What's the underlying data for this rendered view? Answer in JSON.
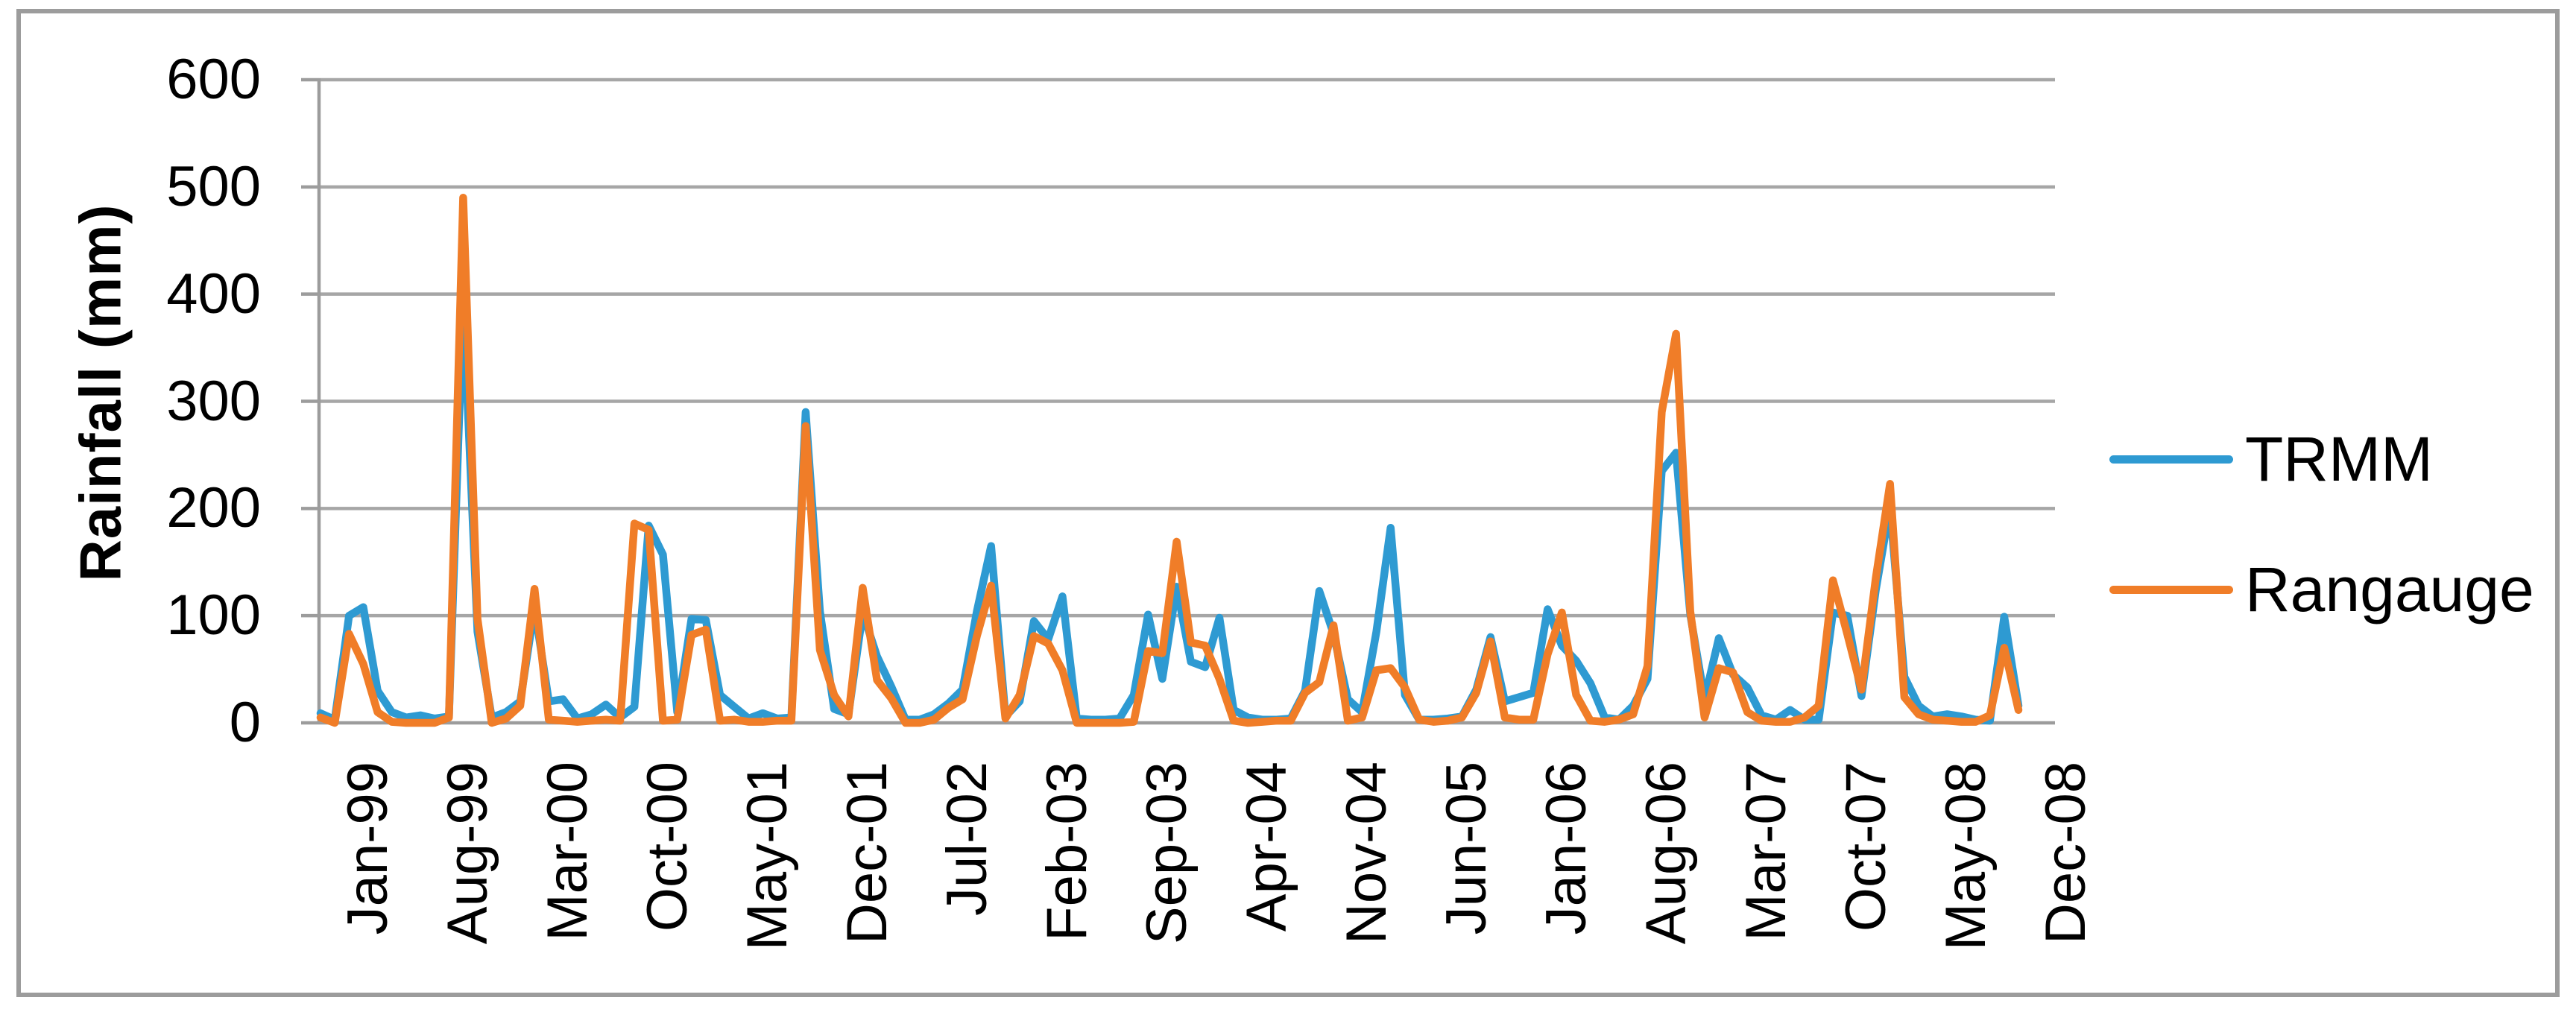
{
  "y_axis": {
    "title": "Rainfall (mm)",
    "ticks": [
      0,
      100,
      200,
      300,
      400,
      500,
      600
    ]
  },
  "x_axis": {
    "tick_labels": [
      "Jan-99",
      "Aug-99",
      "Mar-00",
      "Oct-00",
      "May-01",
      "Dec-01",
      "Jul-02",
      "Feb-03",
      "Sep-03",
      "Apr-04",
      "Nov-04",
      "Jun-05",
      "Jan-06",
      "Aug-06",
      "Mar-07",
      "Oct-07",
      "May-08",
      "Dec-08"
    ],
    "tick_interval_months": 7
  },
  "legend": {
    "items": [
      {
        "label": "TRMM",
        "color": "#2e9ad2"
      },
      {
        "label": "Rangauge",
        "color": "#f07d28"
      }
    ],
    "position": "right"
  },
  "colors": {
    "trmm_line": "#2e9ad2",
    "rangauge_line": "#f07d28",
    "gridline": "#a6a6a6",
    "axis": "#9c9c9c",
    "border": "#9c9c9c",
    "text": "#000000"
  },
  "chart_data": {
    "type": "line",
    "title": "",
    "xlabel": "",
    "ylabel": "Rainfall (mm)",
    "ylim": [
      0,
      600
    ],
    "y_ticks": [
      0,
      100,
      200,
      300,
      400,
      500,
      600
    ],
    "grid": true,
    "legend_position": "right",
    "x": [
      "Jan-99",
      "Feb-99",
      "Mar-99",
      "Apr-99",
      "May-99",
      "Jun-99",
      "Jul-99",
      "Aug-99",
      "Sep-99",
      "Oct-99",
      "Nov-99",
      "Dec-99",
      "Jan-00",
      "Feb-00",
      "Mar-00",
      "Apr-00",
      "May-00",
      "Jun-00",
      "Jul-00",
      "Aug-00",
      "Sep-00",
      "Oct-00",
      "Nov-00",
      "Dec-00",
      "Jan-01",
      "Feb-01",
      "Mar-01",
      "Apr-01",
      "May-01",
      "Jun-01",
      "Jul-01",
      "Aug-01",
      "Sep-01",
      "Oct-01",
      "Nov-01",
      "Dec-01",
      "Jan-02",
      "Feb-02",
      "Mar-02",
      "Apr-02",
      "May-02",
      "Jun-02",
      "Jul-02",
      "Aug-02",
      "Sep-02",
      "Oct-02",
      "Nov-02",
      "Dec-02",
      "Jan-03",
      "Feb-03",
      "Mar-03",
      "Apr-03",
      "May-03",
      "Jun-03",
      "Jul-03",
      "Aug-03",
      "Sep-03",
      "Oct-03",
      "Nov-03",
      "Dec-03",
      "Jan-04",
      "Feb-04",
      "Mar-04",
      "Apr-04",
      "May-04",
      "Jun-04",
      "Jul-04",
      "Aug-04",
      "Sep-04",
      "Oct-04",
      "Nov-04",
      "Dec-04",
      "Jan-05",
      "Feb-05",
      "Mar-05",
      "Apr-05",
      "May-05",
      "Jun-05",
      "Jul-05",
      "Aug-05",
      "Sep-05",
      "Oct-05",
      "Nov-05",
      "Dec-05",
      "Jan-06",
      "Feb-06",
      "Mar-06",
      "Apr-06",
      "May-06",
      "Jun-06",
      "Jul-06",
      "Aug-06",
      "Sep-06",
      "Oct-06",
      "Nov-06",
      "Dec-06",
      "Jan-07",
      "Feb-07",
      "Mar-07",
      "Apr-07",
      "May-07",
      "Jun-07",
      "Jul-07",
      "Aug-07",
      "Sep-07",
      "Oct-07",
      "Nov-07",
      "Dec-07",
      "Jan-08",
      "Feb-08",
      "Mar-08",
      "Apr-08",
      "May-08",
      "Jun-08",
      "Jul-08",
      "Aug-08",
      "Sep-08",
      "Oct-08",
      "Nov-08",
      "Dec-08"
    ],
    "series": [
      {
        "name": "TRMM",
        "color": "#2e9ad2",
        "values": [
          9,
          3,
          100,
          108,
          30,
          10,
          5,
          7,
          4,
          6,
          395,
          85,
          5,
          10,
          20,
          108,
          20,
          22,
          4,
          8,
          17,
          5,
          15,
          184,
          157,
          10,
          97,
          96,
          26,
          15,
          4,
          9,
          4,
          5,
          290,
          104,
          13,
          8,
          103,
          62,
          34,
          3,
          3,
          8,
          18,
          31,
          104,
          165,
          6,
          20,
          95,
          78,
          118,
          4,
          3,
          3,
          4,
          26,
          101,
          41,
          127,
          57,
          52,
          98,
          12,
          5,
          3,
          3,
          4,
          30,
          123,
          83,
          22,
          10,
          85,
          182,
          26,
          3,
          3,
          4,
          6,
          31,
          80,
          20,
          24,
          28,
          106,
          72,
          58,
          37,
          5,
          3,
          16,
          41,
          235,
          252,
          101,
          22,
          79,
          45,
          33,
          7,
          3,
          12,
          3,
          3,
          103,
          100,
          25,
          124,
          202,
          43,
          16,
          6,
          8,
          6,
          3,
          2,
          99,
          16
        ]
      },
      {
        "name": "Rangauge",
        "color": "#f07d28",
        "values": [
          5,
          0,
          83,
          55,
          10,
          1,
          0,
          0,
          0,
          5,
          490,
          97,
          0,
          4,
          16,
          125,
          3,
          2,
          1,
          2,
          3,
          2,
          186,
          180,
          2,
          3,
          82,
          87,
          2,
          3,
          1,
          1,
          2,
          2,
          277,
          68,
          26,
          6,
          126,
          40,
          23,
          0,
          0,
          3,
          14,
          22,
          81,
          128,
          4,
          26,
          81,
          74,
          49,
          0,
          0,
          0,
          0,
          1,
          67,
          65,
          169,
          75,
          72,
          41,
          2,
          0,
          1,
          2,
          2,
          28,
          38,
          91,
          2,
          5,
          49,
          51,
          33,
          3,
          1,
          2,
          5,
          28,
          76,
          5,
          3,
          3,
          64,
          103,
          26,
          2,
          1,
          3,
          8,
          53,
          290,
          363,
          104,
          5,
          51,
          47,
          10,
          2,
          1,
          1,
          5,
          16,
          133,
          83,
          31,
          135,
          223,
          24,
          8,
          3,
          2,
          1,
          1,
          7,
          70,
          12
        ]
      }
    ]
  }
}
